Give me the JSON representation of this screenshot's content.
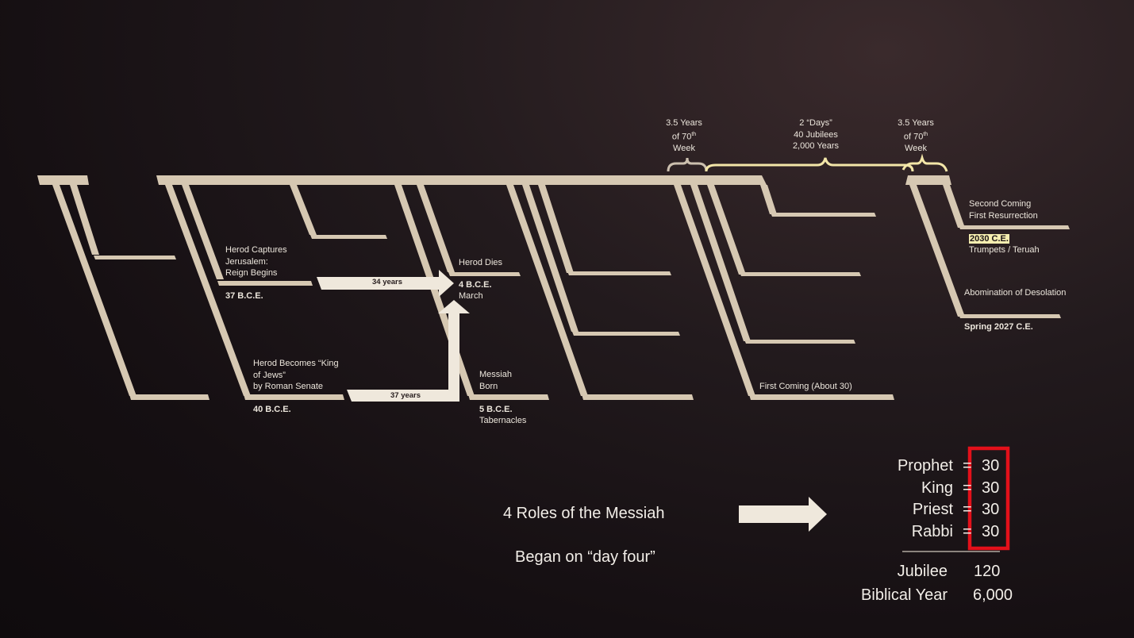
{
  "colors": {
    "bar": "#d6c8b2",
    "arrow": "#efe8dc",
    "brace": "#f3e6a8",
    "highlight": "#f6eeb0",
    "red_box": "#e3101a",
    "text": "#ece6dc"
  },
  "timeline": {
    "brace_left": "3.5 Years\nof 70th\nWeek",
    "brace_mid": "2 “Days”\n40 Jubilees\n2,000 Years",
    "brace_right": "3.5 Years\nof 70th\nWeek",
    "herod_captures": "Herod Captures\nJerusalem:\nReign Begins",
    "herod_captures_date": "37 B.C.E.",
    "herod_becomes": "Herod Becomes “King\nof Jews”\nby Roman Senate",
    "herod_becomes_date": "40 B.C.E.",
    "arrow_34": "34 years",
    "arrow_37": "37 years",
    "herod_dies": "Herod Dies",
    "herod_dies_date": "4 B.C.E.",
    "herod_dies_month": "March",
    "messiah_born": "Messiah\nBorn",
    "messiah_born_date": "5 B.C.E.",
    "messiah_born_feast": "Tabernacles",
    "first_coming": "First Coming (About 30)",
    "second_coming": "Second Coming\nFirst Resurrection",
    "second_coming_year": "2030 C.E.",
    "second_coming_feast": "Trumpets / Teruah",
    "abomination": "Abomination of Desolation",
    "abomination_date": "Spring 2027 C.E."
  },
  "roles": {
    "title": "4 Roles of the Messiah",
    "subtitle": "Began on “day four”",
    "items": [
      {
        "name": "Prophet",
        "eq": "=",
        "value": "30"
      },
      {
        "name": "King",
        "eq": "=",
        "value": "30"
      },
      {
        "name": "Priest",
        "eq": "=",
        "value": "30"
      },
      {
        "name": "Rabbi",
        "eq": "=",
        "value": "30"
      }
    ],
    "totals": [
      {
        "name": "Jubilee",
        "value": "120"
      },
      {
        "name": "Biblical Year",
        "value": "6,000"
      }
    ]
  }
}
